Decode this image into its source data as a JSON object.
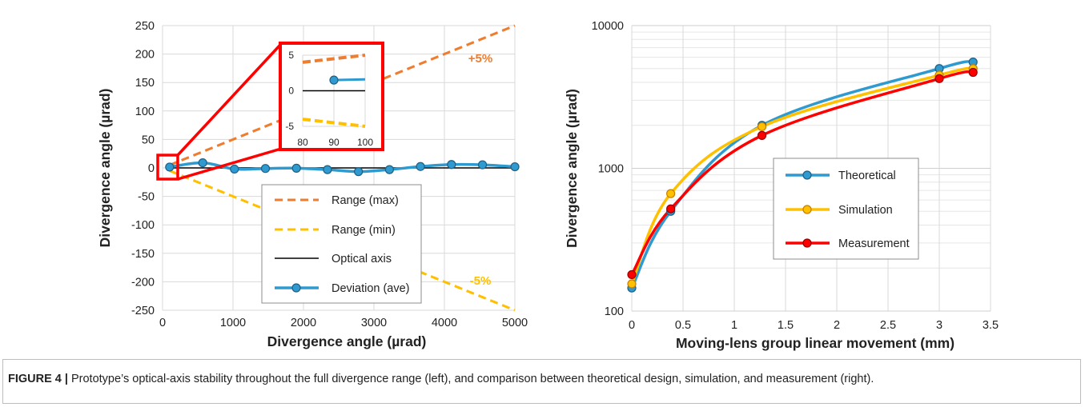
{
  "chart_data": [
    {
      "type": "line",
      "xlabel": "Divergence angle (µrad)",
      "ylabel": "Divergence angle (µrad)",
      "xlim": [
        0,
        5000
      ],
      "ylim": [
        -250,
        250
      ],
      "xticks": [
        0,
        1000,
        2000,
        3000,
        4000,
        5000
      ],
      "yticks": [
        -250,
        -200,
        -150,
        -100,
        -50,
        0,
        50,
        100,
        150,
        200,
        250
      ],
      "grid": true,
      "legend_position": "bottom-center",
      "series": [
        {
          "name": "Range (max)",
          "style": "dashed",
          "color": "#ED7D31",
          "x": [
            100,
            5000
          ],
          "y": [
            5,
            250
          ]
        },
        {
          "name": "Range (min)",
          "style": "dashed",
          "color": "#FFC000",
          "x": [
            100,
            5000
          ],
          "y": [
            -5,
            -250
          ]
        },
        {
          "name": "Optical axis",
          "style": "solid",
          "color": "#000000",
          "x": [
            100,
            5000
          ],
          "y": [
            0,
            0
          ]
        },
        {
          "name": "Deviation (ave)",
          "style": "line-marker",
          "color": "#2E9AD0",
          "x": [
            100,
            570,
            1020,
            1460,
            1900,
            2340,
            2780,
            3220,
            3660,
            4100,
            4540,
            5000
          ],
          "y": [
            1.5,
            9,
            -2,
            -1,
            -0.5,
            -3,
            -6.5,
            -3,
            2.5,
            6,
            5.5,
            2
          ]
        }
      ],
      "annotations": [
        {
          "text": "+5%",
          "color": "#ED7D31"
        },
        {
          "text": "-5%",
          "color": "#FFC000"
        }
      ],
      "inset": {
        "xlim": [
          80,
          100
        ],
        "ylim": [
          -5,
          5
        ],
        "xticks": [
          80,
          90,
          100
        ],
        "yticks": [
          -5,
          0,
          5
        ],
        "point": {
          "x": 90,
          "y": 1.5
        }
      }
    },
    {
      "type": "line",
      "xlabel": "Moving-lens group linear movement (mm)",
      "ylabel": "Divergence angle (µrad)",
      "xlim": [
        0,
        3.5
      ],
      "ylim": [
        100,
        10000
      ],
      "yscale": "log",
      "xticks": [
        "0",
        "0.5",
        "1",
        "1.5",
        "2",
        "2.5",
        "3",
        "3.5"
      ],
      "yticks": [
        "100",
        "1000",
        "10000"
      ],
      "grid": true,
      "legend_position": "center",
      "series": [
        {
          "name": "Theoretical",
          "color": "#2E9AD0",
          "x": [
            0,
            0.38,
            1.27,
            3.0,
            3.33
          ],
          "y": [
            145,
            500,
            2000,
            5000,
            5550
          ]
        },
        {
          "name": "Simulation",
          "color": "#FFC000",
          "x": [
            0,
            0.38,
            1.27,
            3.0,
            3.33
          ],
          "y": [
            155,
            665,
            1960,
            4500,
            5000
          ]
        },
        {
          "name": "Measurement",
          "color": "#FF0000",
          "x": [
            0,
            0.38,
            1.27,
            3.0,
            3.33
          ],
          "y": [
            180,
            520,
            1700,
            4250,
            4700
          ]
        }
      ]
    }
  ],
  "caption": {
    "label": "FIGURE 4 |",
    "text": " Prototype’s optical-axis stability throughout the full divergence range (left), and comparison between theoretical design, simulation, and measurement (right)."
  }
}
